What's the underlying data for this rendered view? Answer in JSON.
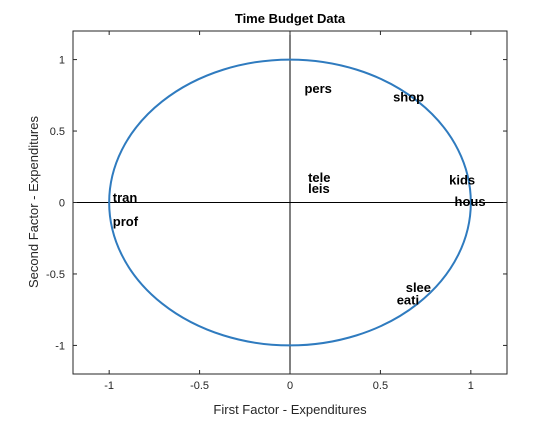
{
  "chart_data": {
    "type": "scatter",
    "title": "Time Budget Data",
    "xlabel": "First Factor - Expenditures",
    "ylabel": "Second Factor - Expenditures",
    "xlim": [
      -1.2,
      1.2
    ],
    "ylim": [
      -1.2,
      1.2
    ],
    "xticks": [
      -1,
      -0.5,
      0,
      0.5,
      1
    ],
    "xtick_labels": [
      "-1",
      "-0.5",
      "0",
      "0.5",
      "1"
    ],
    "yticks": [
      -1,
      -0.5,
      0,
      0.5,
      1
    ],
    "ytick_labels": [
      "-1",
      "-0.5",
      "0",
      "0.5",
      "1"
    ],
    "grid": false,
    "reference_lines": {
      "x": 0,
      "y": 0
    },
    "unit_circle": {
      "center": [
        0,
        0
      ],
      "radius": 1,
      "color": "#2f7bbf"
    },
    "points": [
      {
        "label": "pers",
        "x": 0.08,
        "y": 0.8
      },
      {
        "label": "shop",
        "x": 0.57,
        "y": 0.74
      },
      {
        "label": "tele",
        "x": 0.1,
        "y": 0.18
      },
      {
        "label": "leis",
        "x": 0.1,
        "y": 0.1
      },
      {
        "label": "kids",
        "x": 0.88,
        "y": 0.16
      },
      {
        "label": "hous",
        "x": 0.91,
        "y": 0.01
      },
      {
        "label": "tran",
        "x": -0.98,
        "y": 0.04
      },
      {
        "label": "prof",
        "x": -0.98,
        "y": -0.13
      },
      {
        "label": "slee",
        "x": 0.64,
        "y": -0.59
      },
      {
        "label": "eati",
        "x": 0.59,
        "y": -0.68
      }
    ]
  }
}
